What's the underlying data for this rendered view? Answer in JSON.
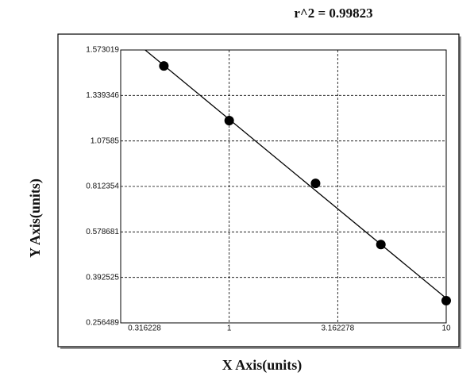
{
  "chart_data": {
    "type": "scatter",
    "title": "r^2 = 0.99823",
    "x_label": "X Axis(units)",
    "y_label": "Y Axis(units)",
    "x": [
      0.5,
      1,
      2.5,
      5,
      10
    ],
    "values": [
      1.491,
      1.194,
      0.83,
      0.527,
      0.323
    ],
    "color": "#000000",
    "fit_line": {
      "x": [
        0.41,
        10
      ],
      "y": [
        1.573019,
        0.33
      ]
    },
    "xscale": "log",
    "xlim": [
      0.316228,
      10
    ],
    "xticks": [
      0.316228,
      1,
      3.162278,
      10
    ],
    "ylim": [
      0.256489,
      1.573019
    ],
    "yticks": [
      0.256489,
      0.392525,
      0.578681,
      0.812354,
      1.07585,
      1.339346,
      1.573019
    ],
    "grid": true
  }
}
